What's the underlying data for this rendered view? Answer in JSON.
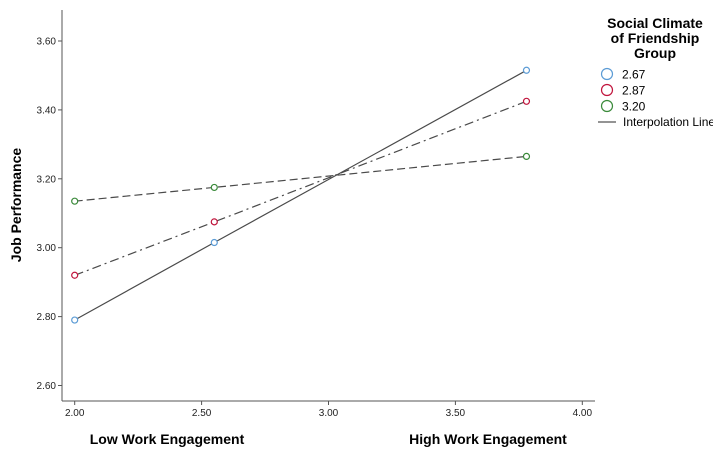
{
  "chart_data": {
    "type": "line",
    "xlabel": "",
    "ylabel": "Job Performance",
    "xlim": [
      1.95,
      4.05
    ],
    "ylim": [
      2.555,
      3.69
    ],
    "x_ticks": [
      "2.00",
      "2.50",
      "3.00",
      "3.50",
      "4.00"
    ],
    "y_ticks": [
      "2.60",
      "2.80",
      "3.00",
      "3.20",
      "3.40",
      "3.60"
    ],
    "x_category_labels": [
      "Low Work Engagement",
      "High Work Engagement"
    ],
    "grid": false,
    "legend": {
      "title_lines": [
        "Social Climate",
        "of Friendship",
        "Group"
      ],
      "placement": "right",
      "interpolation_label": "Interpolation Line"
    },
    "series": [
      {
        "name": "2.67",
        "color": "#5b9bd5",
        "dash": "solid",
        "x": [
          2.0,
          2.55,
          3.78
        ],
        "y": [
          2.79,
          3.015,
          3.515
        ]
      },
      {
        "name": "2.87",
        "color": "#c0143c",
        "dash": "dashdot",
        "x": [
          2.0,
          2.55,
          3.78
        ],
        "y": [
          2.92,
          3.075,
          3.425
        ]
      },
      {
        "name": "3.20",
        "color": "#3a8a3a",
        "dash": "dashed",
        "x": [
          2.0,
          2.55,
          3.78
        ],
        "y": [
          3.135,
          3.175,
          3.265
        ]
      }
    ]
  }
}
